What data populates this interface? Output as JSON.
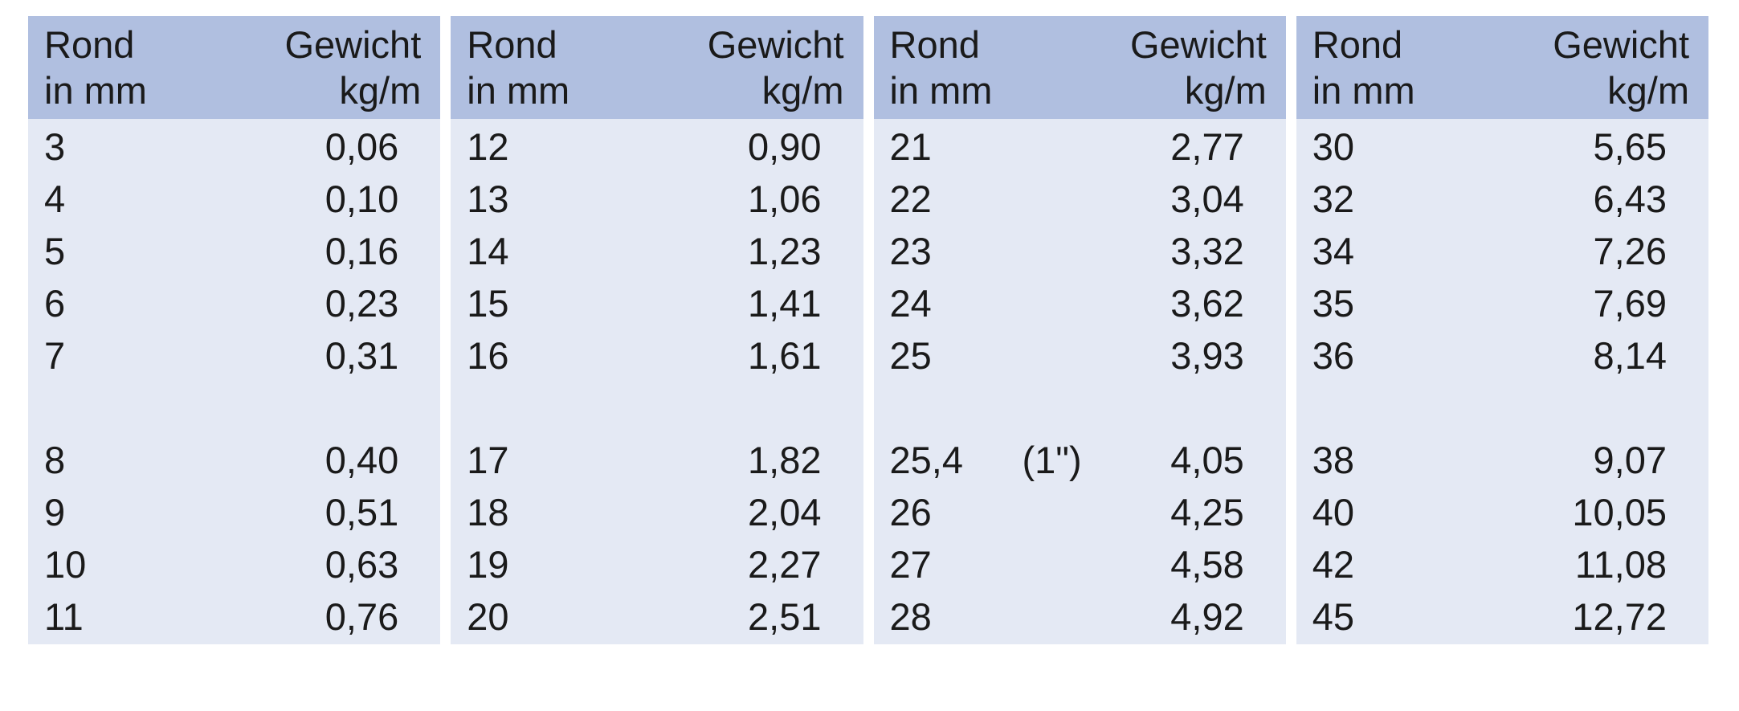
{
  "colors": {
    "page_bg": "#ffffff",
    "header_bg": "#b0bfe0",
    "body_bg": "#e4e9f4",
    "text": "#1a1a1a"
  },
  "table": {
    "header": {
      "diameter_label_line1": "Rond",
      "diameter_label_line2": "in mm",
      "weight_label_line1": "Gewicht",
      "weight_label_line2": "kg/m"
    },
    "columns": [
      {
        "rows": [
          {
            "rond": "3",
            "gewicht": "0,06"
          },
          {
            "rond": "4",
            "gewicht": "0,10"
          },
          {
            "rond": "5",
            "gewicht": "0,16"
          },
          {
            "rond": "6",
            "gewicht": "0,23"
          },
          {
            "rond": "7",
            "gewicht": "0,31"
          },
          {
            "spacer": true
          },
          {
            "rond": "8",
            "gewicht": "0,40"
          },
          {
            "rond": "9",
            "gewicht": "0,51"
          },
          {
            "rond": "10",
            "gewicht": "0,63"
          },
          {
            "rond": "11",
            "gewicht": "0,76"
          }
        ]
      },
      {
        "rows": [
          {
            "rond": "12",
            "gewicht": "0,90"
          },
          {
            "rond": "13",
            "gewicht": "1,06"
          },
          {
            "rond": "14",
            "gewicht": "1,23"
          },
          {
            "rond": "15",
            "gewicht": "1,41"
          },
          {
            "rond": "16",
            "gewicht": "1,61"
          },
          {
            "spacer": true
          },
          {
            "rond": "17",
            "gewicht": "1,82"
          },
          {
            "rond": "18",
            "gewicht": "2,04"
          },
          {
            "rond": "19",
            "gewicht": "2,27"
          },
          {
            "rond": "20",
            "gewicht": "2,51"
          }
        ]
      },
      {
        "rows": [
          {
            "rond": "21",
            "gewicht": "2,77"
          },
          {
            "rond": "22",
            "gewicht": "3,04"
          },
          {
            "rond": "23",
            "gewicht": "3,32"
          },
          {
            "rond": "24",
            "gewicht": "3,62"
          },
          {
            "rond": "25",
            "gewicht": "3,93"
          },
          {
            "spacer": true
          },
          {
            "rond": "25,4",
            "note": "(1\")",
            "gewicht": "4,05"
          },
          {
            "rond": "26",
            "gewicht": "4,25"
          },
          {
            "rond": "27",
            "gewicht": "4,58"
          },
          {
            "rond": "28",
            "gewicht": "4,92"
          }
        ]
      },
      {
        "rows": [
          {
            "rond": "30",
            "gewicht": "5,65"
          },
          {
            "rond": "32",
            "gewicht": "6,43"
          },
          {
            "rond": "34",
            "gewicht": "7,26"
          },
          {
            "rond": "35",
            "gewicht": "7,69"
          },
          {
            "rond": "36",
            "gewicht": "8,14"
          },
          {
            "spacer": true
          },
          {
            "rond": "38",
            "gewicht": "9,07"
          },
          {
            "rond": "40",
            "gewicht": "10,05"
          },
          {
            "rond": "42",
            "gewicht": "11,08"
          },
          {
            "rond": "45",
            "gewicht": "12,72"
          }
        ]
      }
    ]
  }
}
